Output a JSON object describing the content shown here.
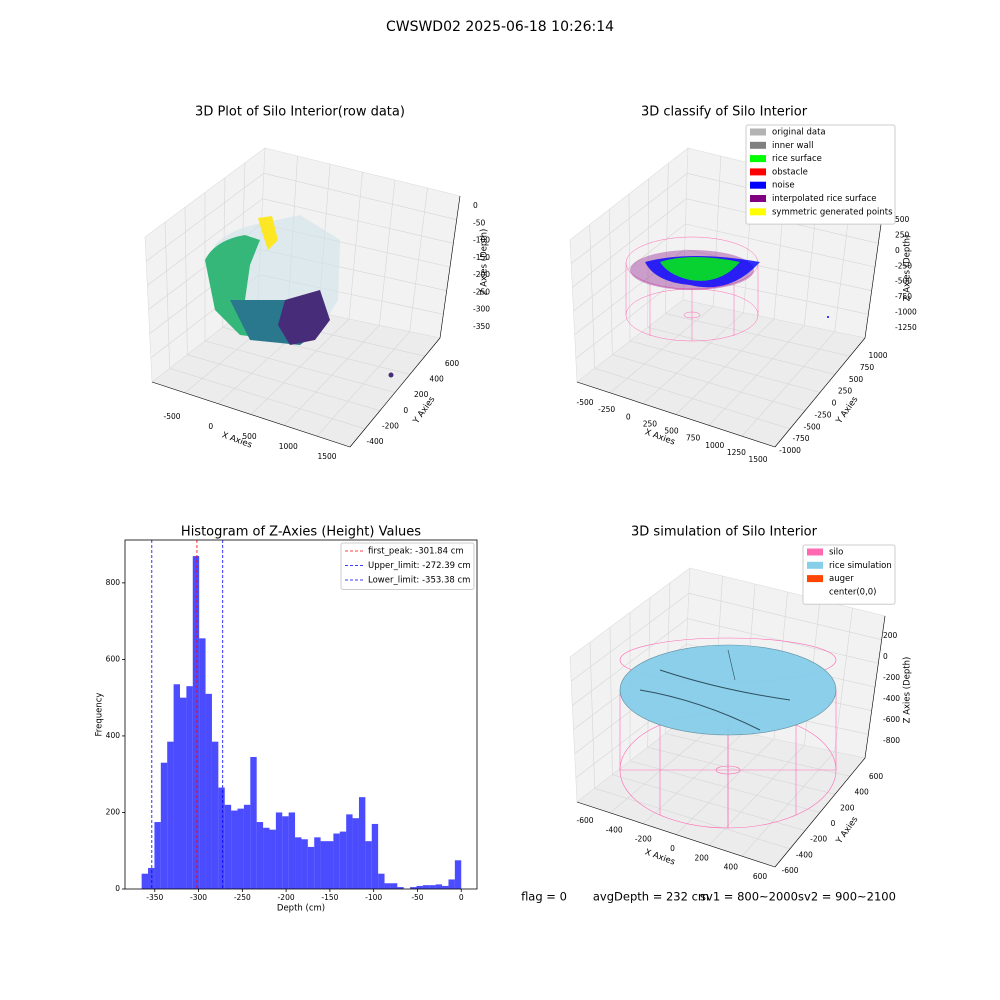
{
  "suptitle": "CWSWD02 2025-06-18 10:26:14",
  "panels": [
    {
      "title": "3D Plot of Silo Interior(row data)",
      "xlabel": "X Axies",
      "ylabel": "Y Axies",
      "zlabel": "Z Axies (Depth)",
      "xticks": [
        -500,
        0,
        500,
        1000,
        1500
      ],
      "yticks": [
        -400,
        -200,
        0,
        200,
        400,
        600
      ],
      "zticks": [
        0,
        -50,
        -100,
        -150,
        -200,
        -250,
        -300,
        -350
      ],
      "legend": []
    },
    {
      "title": "3D classify of Silo Interior",
      "xlabel": "X Axies",
      "ylabel": "Y Axies",
      "zlabel": "Z Axies (Depth)",
      "xticks": [
        -500,
        -250,
        0,
        250,
        500,
        750,
        1000,
        1250,
        1500
      ],
      "yticks": [
        -1000,
        -750,
        -500,
        -250,
        0,
        250,
        500,
        750,
        1000
      ],
      "zticks": [
        500,
        250,
        0,
        -250,
        -500,
        -750,
        -1000,
        -1250
      ],
      "legend": [
        {
          "name": "original data",
          "color": "#b3b3b3"
        },
        {
          "name": "inner wall",
          "color": "#808080"
        },
        {
          "name": "rice surface",
          "color": "#00ff00"
        },
        {
          "name": "obstacle",
          "color": "#ff0000"
        },
        {
          "name": "noise",
          "color": "#0000ff"
        },
        {
          "name": "interpolated rice surface",
          "color": "#800080"
        },
        {
          "name": "symmetric generated points",
          "color": "#ffff00"
        }
      ]
    },
    {
      "title": "3D simulation of Silo Interior",
      "xlabel": "X Axies",
      "ylabel": "Y Axies",
      "zlabel": "Z Axies (Depth)",
      "xticks": [
        -600,
        -400,
        -200,
        0,
        200,
        400,
        600
      ],
      "yticks": [
        -600,
        -400,
        -200,
        0,
        200,
        400,
        600
      ],
      "zticks": [
        200,
        0,
        -200,
        -400,
        -600,
        -800
      ],
      "legend": [
        {
          "name": "silo",
          "color": "#ff69b4"
        },
        {
          "name": "rice simulation",
          "color": "#87ceeb"
        },
        {
          "name": "auger",
          "color": "#ff4500"
        },
        {
          "name": "center(0,0)",
          "color": "#ffffff"
        }
      ],
      "footer": [
        "flag = 0",
        "avgDepth = 232 cm",
        "sv1 = 800~2000",
        "sv2 = 900~2100"
      ]
    }
  ],
  "chart_data": {
    "type": "histogram",
    "title": "Histogram of Z-Axies (Height) Values",
    "xlabel": "Depth (cm)",
    "ylabel": "Frequency",
    "color": "#0000ff",
    "bins": [
      -365,
      -357.7,
      -350.4,
      -343.1,
      -335.8,
      -328.5,
      -321.2,
      -313.9,
      -306.6,
      -299.3,
      -292,
      -284.7,
      -277.4,
      -270.1,
      -262.8,
      -255.5,
      -248.2,
      -240.9,
      -233.6,
      -226.3,
      -219,
      -211.7,
      -204.4,
      -197.1,
      -189.8,
      -182.5,
      -175.2,
      -167.9,
      -160.6,
      -153.3,
      -146,
      -138.7,
      -131.4,
      -124.1,
      -116.8,
      -109.5,
      -102.2,
      -94.9,
      -87.6,
      -80.3,
      -73,
      -65.7,
      -58.4,
      -51.1,
      -43.8,
      -36.5,
      -29.2,
      -21.9,
      -14.6,
      -7.3,
      0
    ],
    "values": [
      40,
      55,
      175,
      330,
      385,
      535,
      500,
      530,
      870,
      655,
      510,
      385,
      265,
      220,
      205,
      210,
      220,
      345,
      175,
      160,
      155,
      200,
      190,
      200,
      135,
      130,
      110,
      135,
      125,
      125,
      145,
      150,
      195,
      185,
      240,
      125,
      170,
      40,
      15,
      15,
      5,
      0,
      5,
      8,
      10,
      10,
      12,
      8,
      25,
      75
    ],
    "xlim": [
      -384,
      18
    ],
    "ylim": [
      0,
      912
    ],
    "xticks": [
      -350,
      -300,
      -250,
      -200,
      -150,
      -100,
      -50,
      0
    ],
    "yticks": [
      0,
      200,
      400,
      600,
      800
    ],
    "vlines": [
      {
        "name": "first_peak: -301.84 cm",
        "value": -301.84,
        "color": "#ff0000"
      },
      {
        "name": "Upper_limit: -272.39 cm",
        "value": -272.39,
        "color": "#0000ff"
      },
      {
        "name": "Lower_limit: -353.38 cm",
        "value": -353.38,
        "color": "#0000ff"
      }
    ]
  }
}
